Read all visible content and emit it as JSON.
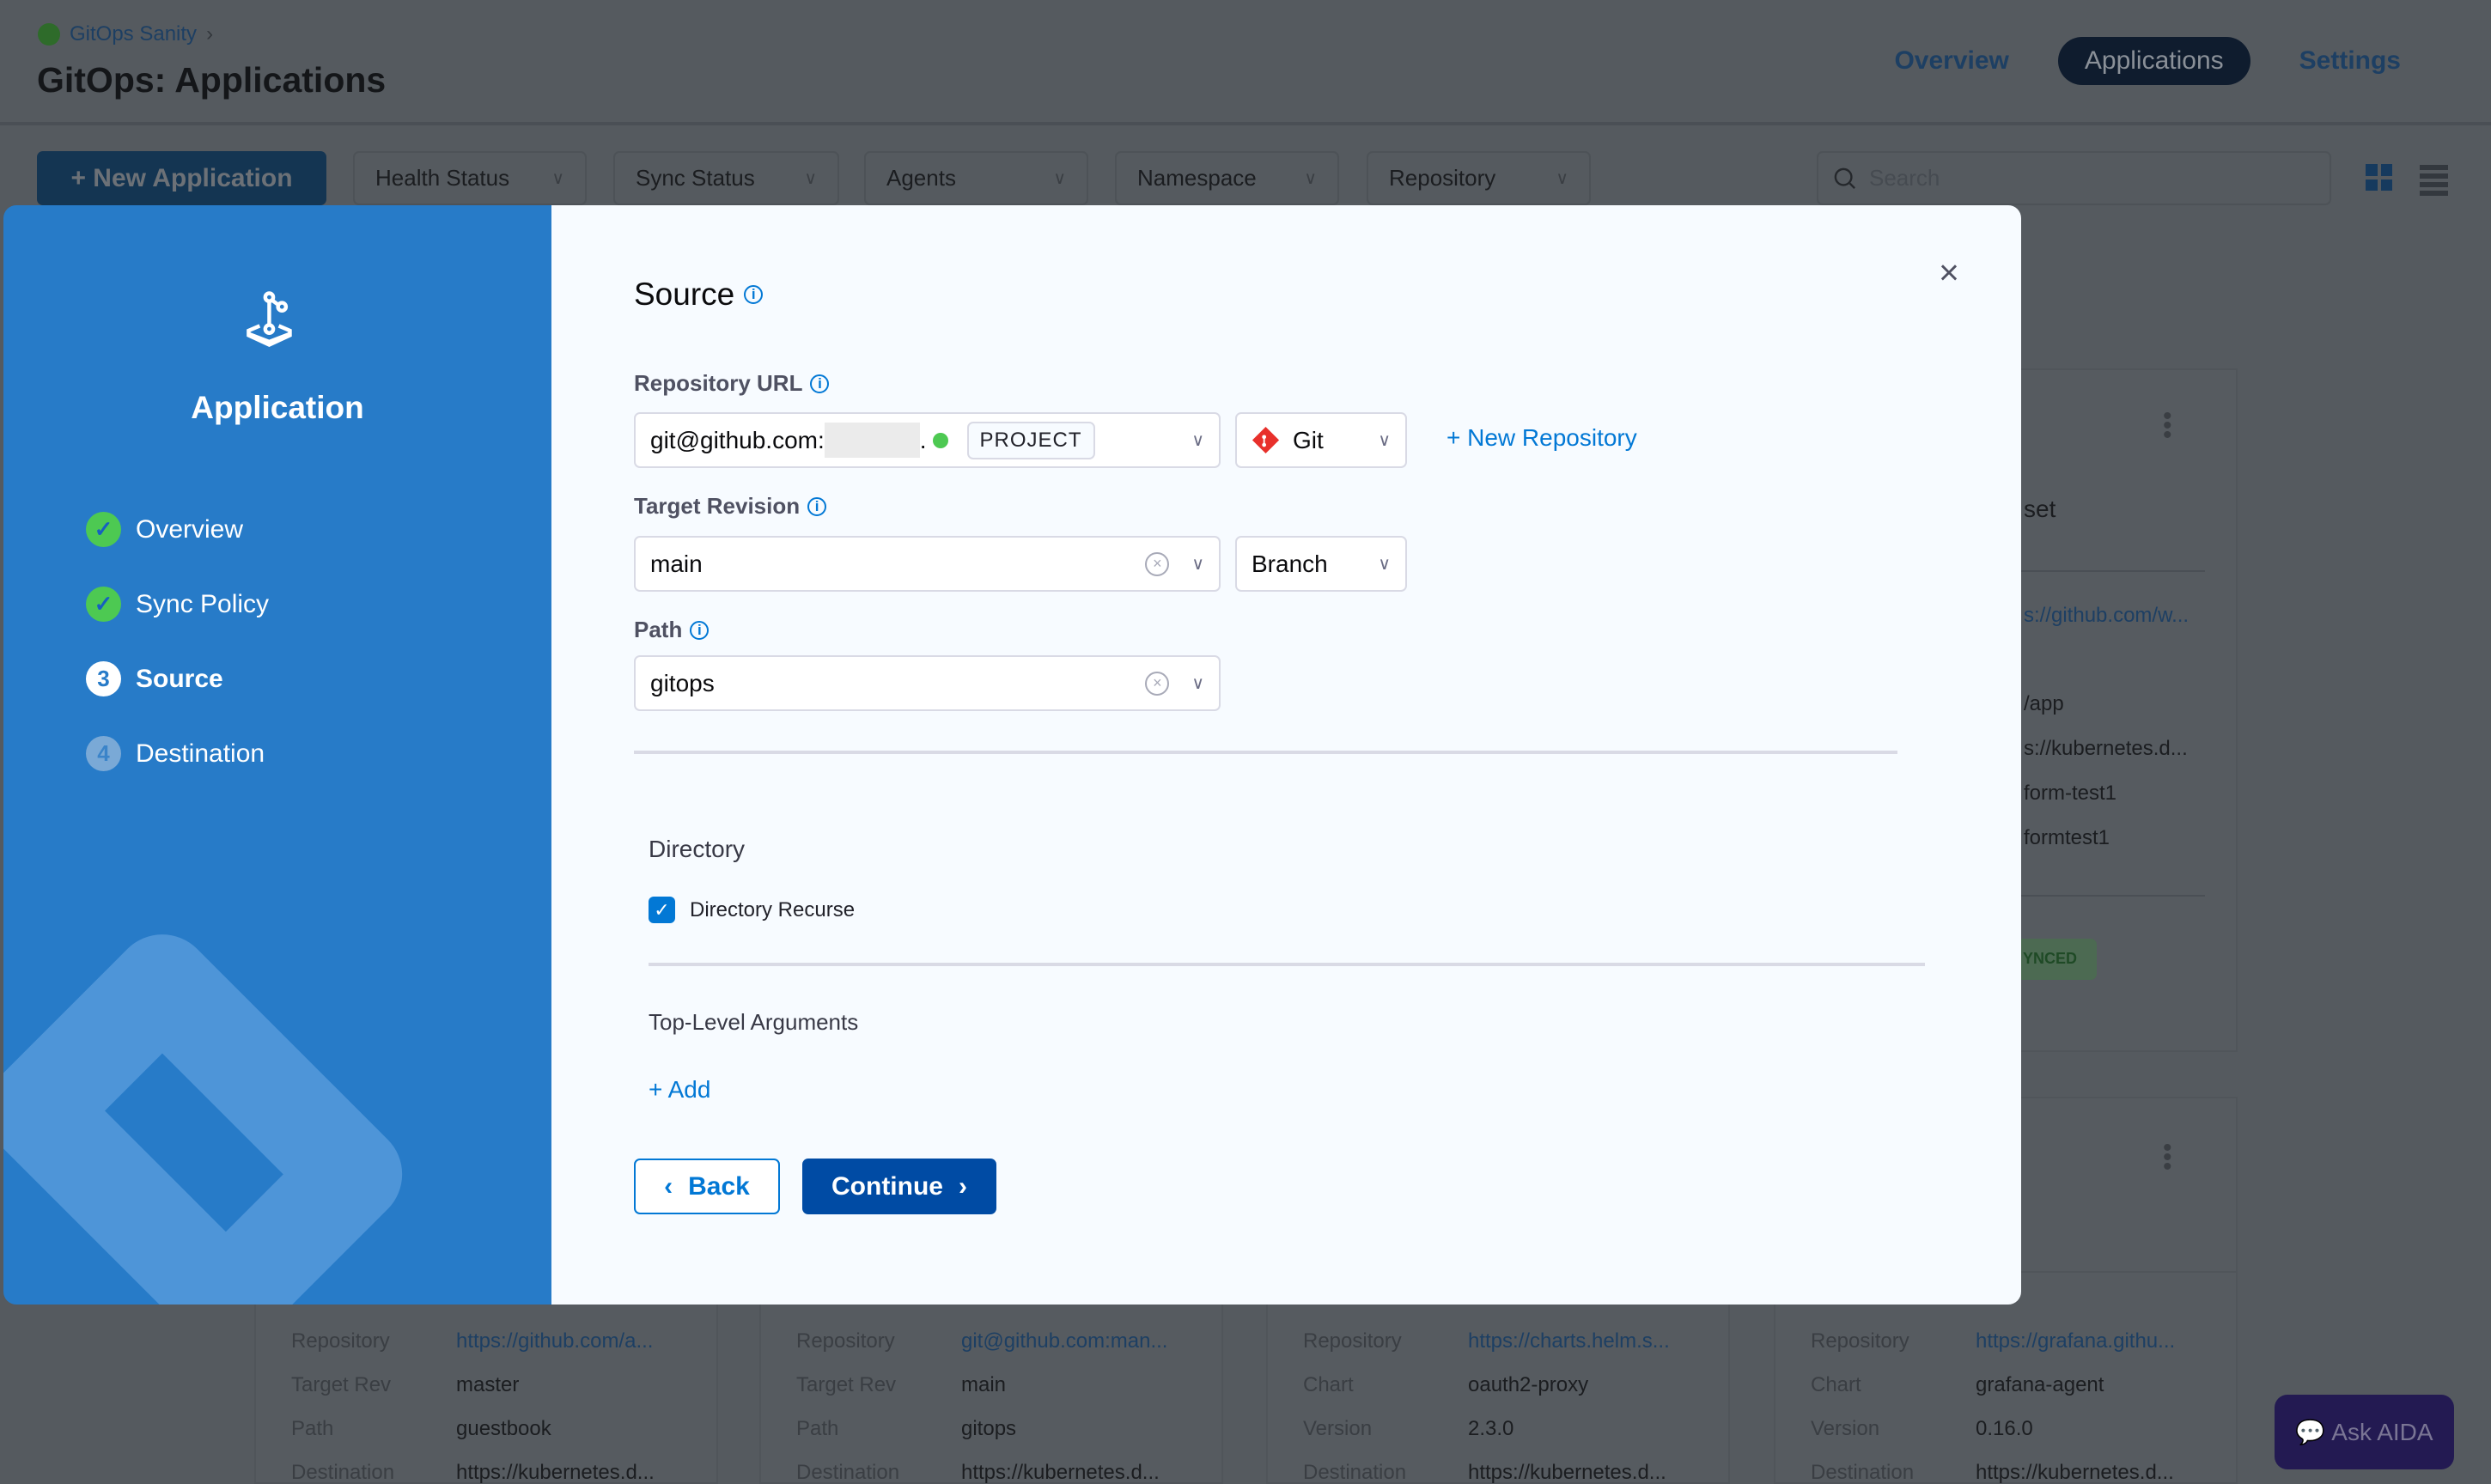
{
  "header": {
    "breadcrumb": "GitOps Sanity",
    "title": "GitOps: Applications",
    "nav": [
      {
        "label": "Overview"
      },
      {
        "label": "Applications",
        "active": true
      },
      {
        "label": "Settings"
      }
    ]
  },
  "toolbar": {
    "new_app": "+ New Application",
    "filters": [
      "Health Status",
      "Sync Status",
      "Agents",
      "Namespace",
      "Repository"
    ],
    "search_placeholder": "Search"
  },
  "background_cards": {
    "top_right": [
      "set",
      "s://github.com/w...",
      "/app",
      "s://kubernetes.d...",
      "form-test1",
      "formtest1",
      "YNCED"
    ],
    "bottom": [
      {
        "rows": [
          [
            "Repository",
            "https://github.com/a..."
          ],
          [
            "Target Rev",
            "master"
          ],
          [
            "Path",
            "guestbook"
          ],
          [
            "Destination",
            "https://kubernetes.d..."
          ]
        ]
      },
      {
        "rows": [
          [
            "Repository",
            "git@github.com:man..."
          ],
          [
            "Target Rev",
            "main"
          ],
          [
            "Path",
            "gitops"
          ],
          [
            "Destination",
            "https://kubernetes.d..."
          ]
        ]
      },
      {
        "rows": [
          [
            "Repository",
            "https://charts.helm.s..."
          ],
          [
            "Chart",
            "oauth2-proxy"
          ],
          [
            "Version",
            "2.3.0"
          ],
          [
            "Destination",
            "https://kubernetes.d..."
          ]
        ]
      },
      {
        "rows": [
          [
            "Repository",
            "https://grafana.githu..."
          ],
          [
            "Chart",
            "grafana-agent"
          ],
          [
            "Version",
            "0.16.0"
          ],
          [
            "Destination",
            "https://kubernetes.d..."
          ]
        ]
      }
    ]
  },
  "ask_aida": "Ask AIDA",
  "wizard": {
    "title": "Application",
    "steps": [
      {
        "label": "Overview",
        "state": "done"
      },
      {
        "label": "Sync Policy",
        "state": "done"
      },
      {
        "label": "Source",
        "state": "current",
        "num": "3"
      },
      {
        "label": "Destination",
        "state": "todo",
        "num": "4"
      }
    ]
  },
  "form": {
    "title": "Source",
    "repo_label": "Repository URL",
    "repo_value": "git@github.com:",
    "repo_suffix": ".",
    "repo_scope": "PROJECT",
    "repo_type": "Git",
    "new_repo": "+ New Repository",
    "rev_label": "Target Revision",
    "rev_value": "main",
    "rev_type": "Branch",
    "path_label": "Path",
    "path_value": "gitops",
    "directory_title": "Directory",
    "recurse_label": "Directory Recurse",
    "recurse_checked": true,
    "args_title": "Top-Level Arguments",
    "add_label": "+ Add",
    "back": "Back",
    "continue": "Continue"
  },
  "colors": {
    "accent": "#0278d5",
    "wizard_bg": "#277bc8",
    "continue_bg": "#004ba4",
    "success": "#4dc952"
  }
}
